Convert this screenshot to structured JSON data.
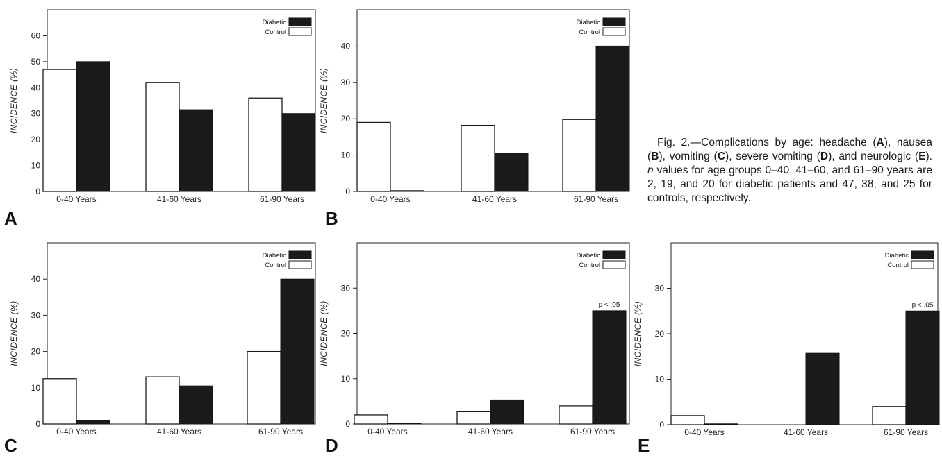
{
  "caption": {
    "prefix": "Fig. 2.—Complications by age: headache (",
    "A": "A",
    "t1": "), nausea (",
    "B": "B",
    "t2": "), vomiting (",
    "C": "C",
    "t3": "), severe vomiting (",
    "D": "D",
    "t4": "), and neurologic (",
    "E": "E",
    "t5": "). ",
    "n": "n",
    "rest": " values for age groups 0–40, 41–60, and 61–90 years are 2, 19, and 20 for diabetic patients and 47, 38, and 25 for controls, respectively."
  },
  "chart_data": [
    {
      "panel": "A",
      "type": "bar",
      "categories": [
        "0-40  Years",
        "41-60  Years",
        "61-90  Years"
      ],
      "ylabel": "INCIDENCE  (%)",
      "ylim": [
        0,
        70
      ],
      "yticks": [
        0,
        10,
        20,
        30,
        40,
        50,
        60
      ],
      "legend": [
        "Diabetic",
        "Control"
      ],
      "series": [
        {
          "name": "Control",
          "values": [
            47,
            42,
            36
          ]
        },
        {
          "name": "Diabetic",
          "values": [
            50,
            31.5,
            30
          ]
        }
      ],
      "annotation": ""
    },
    {
      "panel": "B",
      "type": "bar",
      "categories": [
        "0-40  Years",
        "41-60  Years",
        "61-90  Years"
      ],
      "ylabel": "INCIDENCE  (%)",
      "ylim": [
        0,
        50
      ],
      "yticks": [
        0,
        10,
        20,
        30,
        40
      ],
      "legend": [
        "Diabetic",
        "Control"
      ],
      "series": [
        {
          "name": "Control",
          "values": [
            19,
            18.2,
            19.8
          ]
        },
        {
          "name": "Diabetic",
          "values": [
            0.2,
            10.5,
            40
          ]
        }
      ],
      "annotation": ""
    },
    {
      "panel": "C",
      "type": "bar",
      "categories": [
        "0-40  Years",
        "41-60  Years",
        "61-90  Years"
      ],
      "ylabel": "INCIDENCE  (%)",
      "ylim": [
        0,
        50
      ],
      "yticks": [
        0,
        10,
        20,
        30,
        40
      ],
      "legend": [
        "Diabetic",
        "Control"
      ],
      "series": [
        {
          "name": "Control",
          "values": [
            12.5,
            13,
            20
          ]
        },
        {
          "name": "Diabetic",
          "values": [
            1,
            10.5,
            40
          ]
        }
      ],
      "annotation": ""
    },
    {
      "panel": "D",
      "type": "bar",
      "categories": [
        "0-40  Years",
        "41-60  Years",
        "61-90  Years"
      ],
      "ylabel": "INCIDENCE  (%)",
      "ylim": [
        0,
        40
      ],
      "yticks": [
        0,
        10,
        20,
        30
      ],
      "legend": [
        "Diabetic",
        "Control"
      ],
      "series": [
        {
          "name": "Control",
          "values": [
            2,
            2.7,
            4
          ]
        },
        {
          "name": "Diabetic",
          "values": [
            0.1,
            5.3,
            25
          ]
        }
      ],
      "annotation": "p < .05"
    },
    {
      "panel": "E",
      "type": "bar",
      "categories": [
        "0-40  Years",
        "41-60  Years",
        "61-90  Years"
      ],
      "ylabel": "INCIDENCE  (%)",
      "ylim": [
        0,
        40
      ],
      "yticks": [
        0,
        10,
        20,
        30
      ],
      "legend": [
        "Diabetic",
        "Control"
      ],
      "series": [
        {
          "name": "Control",
          "values": [
            2,
            0,
            4
          ]
        },
        {
          "name": "Diabetic",
          "values": [
            0.1,
            15.7,
            25
          ]
        }
      ],
      "annotation": "p < .05"
    }
  ]
}
